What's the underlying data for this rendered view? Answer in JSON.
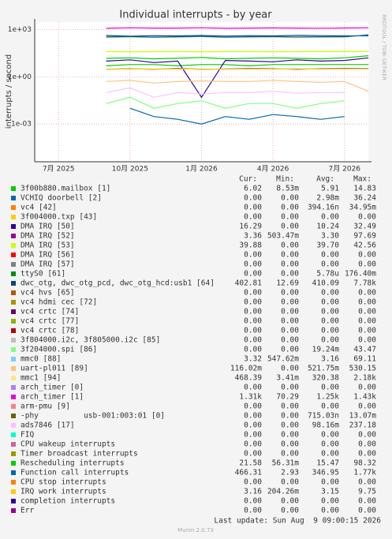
{
  "chart_data": {
    "type": "line",
    "title": "Individual interrupts - by year",
    "y_label": "interrupts / second",
    "watermark": "RRDTOOL / TOBI OETIKER",
    "log_scale": true,
    "grid": true,
    "x": [
      "2025-09",
      "2025-10",
      "2025-11",
      "2025-12",
      "2026-01",
      "2026-02",
      "2026-03",
      "2026-04",
      "2026-05",
      "2026-06",
      "2026-07",
      "2026-08"
    ],
    "xlim": [
      "2025-06",
      "2026-08"
    ],
    "xticks": [
      {
        "value": "2025-07",
        "label": "7月 2025"
      },
      {
        "value": "2025-10",
        "label": "10月 2025"
      },
      {
        "value": "2026-01",
        "label": "1月 2026"
      },
      {
        "value": "2026-04",
        "label": "4月 2026"
      },
      {
        "value": "2026-07",
        "label": "7月 2026"
      }
    ],
    "ylim": [
      4e-06,
      3000
    ],
    "yticks": [
      {
        "value": 1000,
        "label": "1e+03"
      },
      {
        "value": 1,
        "label": "1e+00"
      },
      {
        "value": 0.001,
        "label": "1e-03"
      }
    ],
    "legend_columns": [
      "Cur:",
      "Min:",
      "Avg:",
      "Max:"
    ],
    "series": [
      {
        "name": "3f00b880.mailbox [1]",
        "color": "#00cc00",
        "values": [
          5,
          6,
          6,
          5,
          6,
          6,
          5,
          6,
          6,
          6,
          6,
          6
        ],
        "stats": [
          "6.02",
          "8.53m",
          "5.91",
          "14.83"
        ]
      },
      {
        "name": "VCHIQ doorbell [2]",
        "color": "#0066b3",
        "values": [
          0,
          0.01,
          0.003,
          0.002,
          0.001,
          0.003,
          0.002,
          0.004,
          0.003,
          0.002,
          0.003,
          0
        ],
        "stats": [
          "0.00",
          "0.00",
          "2.98m",
          "36.24"
        ]
      },
      {
        "name": "vc4 [42]",
        "color": "#ff8000",
        "values": [
          0,
          0,
          0,
          0,
          0,
          0,
          0,
          0,
          0,
          0,
          0,
          0
        ],
        "stats": [
          "0.00",
          "0.00",
          "394.16n",
          "34.95m"
        ]
      },
      {
        "name": "3f004000.txp [43]",
        "color": "#ffcc00",
        "values": [
          0,
          0,
          0,
          0,
          0,
          0,
          0,
          0,
          0,
          0,
          0,
          0
        ],
        "stats": [
          "0.00",
          "0.00",
          "0.00",
          "0.00"
        ]
      },
      {
        "name": "DMA IRQ [50]",
        "color": "#330099",
        "values": [
          10,
          12,
          8,
          10,
          0.05,
          11,
          10,
          9,
          12,
          10,
          11,
          16
        ],
        "stats": [
          "16.29",
          "0.00",
          "10.24",
          "32.49"
        ]
      },
      {
        "name": "DMA IRQ [52]",
        "color": "#990099",
        "values": [
          3,
          3.3,
          3,
          3.5,
          3,
          3.2,
          3.4,
          3.3,
          3,
          3.3,
          3.4,
          3.4
        ],
        "stats": [
          "3.36",
          "503.47m",
          "3.30",
          "97.69"
        ]
      },
      {
        "name": "DMA IRQ [53]",
        "color": "#ccff00",
        "values": [
          40,
          39,
          40,
          40,
          39,
          40,
          40,
          39,
          40,
          40,
          40,
          40
        ],
        "stats": [
          "39.88",
          "0.00",
          "39.70",
          "42.56"
        ]
      },
      {
        "name": "DMA IRQ [56]",
        "color": "#ff0000",
        "values": [
          0,
          0,
          0,
          0,
          0,
          0,
          0,
          0,
          0,
          0,
          0,
          0
        ],
        "stats": [
          "0.00",
          "0.00",
          "0.00",
          "0.00"
        ]
      },
      {
        "name": "DMA IRQ [57]",
        "color": "#808080",
        "values": [
          0,
          0,
          0,
          0,
          0,
          0,
          0,
          0,
          0,
          0,
          0,
          0
        ],
        "stats": [
          "0.00",
          "0.00",
          "0.00",
          "0.00"
        ]
      },
      {
        "name": "ttyS0 [61]",
        "color": "#008f00",
        "values": [
          0,
          0,
          0,
          0,
          0,
          0,
          0,
          0,
          0,
          0,
          0,
          0
        ],
        "stats": [
          "0.00",
          "0.00",
          "5.78u",
          "176.40m"
        ]
      },
      {
        "name": "dwc_otg, dwc_otg_pcd, dwc_otg_hcd:usb1 [64]",
        "color": "#00487d",
        "values": [
          420,
          380,
          410,
          400,
          420,
          390,
          410,
          400,
          430,
          410,
          400,
          403
        ],
        "stats": [
          "402.81",
          "12.69",
          "410.09",
          "7.78k"
        ]
      },
      {
        "name": "vc4 hvs [65]",
        "color": "#b35a00",
        "values": [
          0,
          0,
          0,
          0,
          0,
          0,
          0,
          0,
          0,
          0,
          0,
          0
        ],
        "stats": [
          "0.00",
          "0.00",
          "0.00",
          "0.00"
        ]
      },
      {
        "name": "vc4 hdmi cec [72]",
        "color": "#b38f00",
        "values": [
          0,
          0,
          0,
          0,
          0,
          0,
          0,
          0,
          0,
          0,
          0,
          0
        ],
        "stats": [
          "0.00",
          "0.00",
          "0.00",
          "0.00"
        ]
      },
      {
        "name": "vc4 crtc [74]",
        "color": "#6b006b",
        "values": [
          0,
          0,
          0,
          0,
          0,
          0,
          0,
          0,
          0,
          0,
          0,
          0
        ],
        "stats": [
          "0.00",
          "0.00",
          "0.00",
          "0.00"
        ]
      },
      {
        "name": "vc4 crtc [77]",
        "color": "#8fb300",
        "values": [
          0,
          0,
          0,
          0,
          0,
          0,
          0,
          0,
          0,
          0,
          0,
          0
        ],
        "stats": [
          "0.00",
          "0.00",
          "0.00",
          "0.00"
        ]
      },
      {
        "name": "vc4 crtc [78]",
        "color": "#b30000",
        "values": [
          0,
          0,
          0,
          0,
          0,
          0,
          0,
          0,
          0,
          0,
          0,
          0
        ],
        "stats": [
          "0.00",
          "0.00",
          "0.00",
          "0.00"
        ]
      },
      {
        "name": "3f804000.i2c, 3f805000.i2c [85]",
        "color": "#bebebe",
        "values": [
          0,
          0,
          0,
          0,
          0,
          0,
          0,
          0,
          0,
          0,
          0,
          0
        ],
        "stats": [
          "0.00",
          "0.00",
          "0.00",
          "0.00"
        ]
      },
      {
        "name": "3f204000.spi [86]",
        "color": "#80ff80",
        "values": [
          0.02,
          0.05,
          0.01,
          0.02,
          0.03,
          0.01,
          0.02,
          0.02,
          0.01,
          0.02,
          0.03,
          0
        ],
        "stats": [
          "0.00",
          "0.00",
          "19.24m",
          "43.47"
        ]
      },
      {
        "name": "mmc0 [88]",
        "color": "#80c9ff",
        "values": [
          3,
          3.2,
          3.1,
          3.3,
          3,
          3.2,
          3.1,
          3.2,
          3.3,
          3.1,
          3.2,
          3.3
        ],
        "stats": [
          "3.32",
          "547.62m",
          "3.16",
          "69.11"
        ]
      },
      {
        "name": "uart-pl011 [89]",
        "color": "#ffc080",
        "values": [
          0.5,
          0.6,
          0.4,
          0.5,
          0.55,
          0.5,
          0.5,
          0.6,
          0.5,
          0.45,
          0.5,
          0.12
        ],
        "stats": [
          "116.02m",
          "0.00",
          "521.75m",
          "530.15"
        ]
      },
      {
        "name": "mmc1 [94]",
        "color": "#ffe680",
        "values": [
          300,
          330,
          310,
          320,
          350,
          310,
          320,
          330,
          300,
          320,
          330,
          468
        ],
        "stats": [
          "468.39",
          "3.41m",
          "320.38",
          "2.18k"
        ]
      },
      {
        "name": "arch_timer [0]",
        "color": "#aa80ff",
        "values": [
          0,
          0,
          0,
          0,
          0,
          0,
          0,
          0,
          0,
          0,
          0,
          0
        ],
        "stats": [
          "0.00",
          "0.00",
          "0.00",
          "0.00"
        ]
      },
      {
        "name": "arch_timer [1]",
        "color": "#ee00cc",
        "values": [
          1200,
          1300,
          1250,
          1250,
          1300,
          1200,
          1250,
          1280,
          1250,
          1220,
          1260,
          1310
        ],
        "stats": [
          "1.31k",
          "70.29",
          "1.25k",
          "1.43k"
        ]
      },
      {
        "name": "arm-pmu [9]",
        "color": "#ff8080",
        "values": [
          0,
          0,
          0,
          0,
          0,
          0,
          0,
          0,
          0,
          0,
          0,
          0
        ],
        "stats": [
          "0.00",
          "0.00",
          "0.00",
          "0.00"
        ]
      },
      {
        "name": "-phy          usb-001:003:01 [0]",
        "color": "#666600",
        "values": [
          0,
          0,
          0,
          0,
          0,
          0,
          0,
          0,
          0,
          0,
          0,
          0
        ],
        "stats": [
          "0.00",
          "0.00",
          "715.03n",
          "13.07m"
        ]
      },
      {
        "name": "ads7846 [17]",
        "color": "#ffbfff",
        "values": [
          0.1,
          0.2,
          0.05,
          0.1,
          0.08,
          0.1,
          0.1,
          0.12,
          0.09,
          0.1,
          0.1,
          0
        ],
        "stats": [
          "0.00",
          "0.00",
          "98.16m",
          "237.18"
        ]
      },
      {
        "name": "FIQ",
        "color": "#00ffcc",
        "values": [
          0,
          0,
          0,
          0,
          0,
          0,
          0,
          0,
          0,
          0,
          0,
          0
        ],
        "stats": [
          "0.00",
          "0.00",
          "0.00",
          "0.00"
        ]
      },
      {
        "name": "CPU wakeup interrupts",
        "color": "#cc6699",
        "values": [
          0,
          0,
          0,
          0,
          0,
          0,
          0,
          0,
          0,
          0,
          0,
          0
        ],
        "stats": [
          "0.00",
          "0.00",
          "0.00",
          "0.00"
        ]
      },
      {
        "name": "Timer broadcast interrupts",
        "color": "#999900",
        "values": [
          0,
          0,
          0,
          0,
          0,
          0,
          0,
          0,
          0,
          0,
          0,
          0
        ],
        "stats": [
          "0.00",
          "0.00",
          "0.00",
          "0.00"
        ]
      },
      {
        "name": "Rescheduling interrupts",
        "color": "#00cc00",
        "values": [
          15,
          16,
          14,
          15,
          17,
          14,
          15,
          16,
          15,
          14,
          16,
          22
        ],
        "stats": [
          "21.58",
          "56.31m",
          "15.47",
          "98.32"
        ]
      },
      {
        "name": "Function call interrupts",
        "color": "#0066b3",
        "values": [
          340,
          360,
          330,
          350,
          370,
          330,
          350,
          360,
          340,
          350,
          345,
          466
        ],
        "stats": [
          "466.31",
          "2.93",
          "346.95",
          "1.77k"
        ]
      },
      {
        "name": "CPU stop interrupts",
        "color": "#ff8000",
        "values": [
          0,
          0,
          0,
          0,
          0,
          0,
          0,
          0,
          0,
          0,
          0,
          0
        ],
        "stats": [
          "0.00",
          "0.00",
          "0.00",
          "0.00"
        ]
      },
      {
        "name": "IRQ work interrupts",
        "color": "#ffcc00",
        "values": [
          3,
          3.2,
          3.1,
          3.1,
          3.2,
          3,
          3.2,
          3.1,
          3.2,
          3.1,
          3.2,
          3.2
        ],
        "stats": [
          "3.16",
          "204.26m",
          "3.15",
          "9.75"
        ]
      },
      {
        "name": "completion interrupts",
        "color": "#330099",
        "values": [
          0,
          0,
          0,
          0,
          0,
          0,
          0,
          0,
          0,
          0,
          0,
          0
        ],
        "stats": [
          "0.00",
          "0.00",
          "0.00",
          "0.00"
        ]
      },
      {
        "name": "Err",
        "color": "#990099",
        "values": [
          0,
          0,
          0,
          0,
          0,
          0,
          0,
          0,
          0,
          0,
          0,
          0
        ],
        "stats": [
          "0.00",
          "0.00",
          "0.00",
          "0.00"
        ]
      }
    ],
    "last_update": "Last update: Sun Aug  9 09:00:15 2026",
    "version": "Munin 2.0.73"
  }
}
